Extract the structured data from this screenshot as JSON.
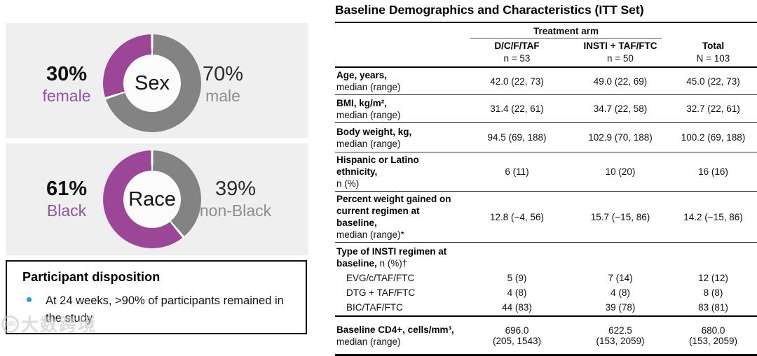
{
  "colors": {
    "slice_purple": "#9c4698",
    "slice_gray": "#838383",
    "purple_text": "#9454a4",
    "gray_text": "#8e8e8e",
    "card_bg": "#f0eff0",
    "bullet_blue": "#2e9ad6"
  },
  "charts": {
    "sex": {
      "center": "Sex",
      "left_pct": "30%",
      "left_label": "female",
      "right_pct": "70%",
      "right_label": "male"
    },
    "race": {
      "center": "Race",
      "left_pct": "61%",
      "left_label": "Black",
      "right_pct": "39%",
      "right_label": "non-Black"
    }
  },
  "disposition": {
    "title": "Participant disposition",
    "bullet_text": "At 24 weeks, >90% of participants remained in the study"
  },
  "watermark": {
    "logo": "100",
    "text": "大数跨境"
  },
  "table": {
    "title": "Baseline Demographics and Characteristics (ITT Set)",
    "header": {
      "arm_label": "Treatment arm",
      "columns": [
        {
          "name": "D/C/F/TAF",
          "n": "n = 53"
        },
        {
          "name": "INSTI + TAF/FTC",
          "n": "n = 50"
        },
        {
          "name": "Total",
          "n": "N = 103"
        }
      ]
    },
    "rows": [
      {
        "label_bold": "Age, years,",
        "label_rest": "median (range)",
        "values": [
          "42.0 (22, 73)",
          "49.0 (22, 69)",
          "45.0 (22, 73)"
        ]
      },
      {
        "label_bold": "BMI, kg/m²,",
        "label_rest": "median (range)",
        "values": [
          "31.4 (22, 61)",
          "34.7 (22, 58)",
          "32.7 (22, 61)"
        ]
      },
      {
        "label_bold": "Body weight, kg,",
        "label_rest": "median (range)",
        "values": [
          "94.5 (69, 188)",
          "102.9 (70, 188)",
          "100.2 (69, 188)"
        ]
      },
      {
        "label_bold": "Hispanic or Latino ethnicity,",
        "label_rest": "n (%)",
        "values": [
          "6 (11)",
          "10 (20)",
          "16 (16)"
        ]
      },
      {
        "label_bold": "Percent weight gained on current regimen at baseline,",
        "label_rest": "median (range)*",
        "values": [
          "12.8 (−4, 56)",
          "15.7 (−15, 86)",
          "14.2 (−15, 86)"
        ]
      },
      {
        "label_bold": "Type of INSTI regimen at baseline,",
        "label_rest": " n (%)†",
        "sub_rows": [
          {
            "label": "EVG/c/TAF/FTC",
            "values": [
              "5 (9)",
              "7 (14)",
              "12 (12)"
            ]
          },
          {
            "label": "DTG + TAF/FTC",
            "values": [
              "4 (8)",
              "4 (8)",
              "8 (8)"
            ]
          },
          {
            "label": "BIC/TAF/FTC",
            "values": [
              "44 (83)",
              "39 (78)",
              "83 (81)"
            ]
          }
        ]
      },
      {
        "label_bold": "Baseline CD4+, cells/mm³,",
        "label_rest": "median (range)",
        "values": [
          "696.0\n(205, 1543)",
          "622.5\n(153, 2059)",
          "680.0\n(153, 2059)"
        ]
      }
    ]
  },
  "chart_data": [
    {
      "type": "pie",
      "title": "Sex",
      "donut": true,
      "labels": [
        "male",
        "female"
      ],
      "values": [
        70,
        30
      ],
      "colors": [
        "#838383",
        "#9c4698"
      ],
      "annotations": [
        "30% female",
        "70% male"
      ],
      "layout": "slices start at 12 o'clock, male clockwise first; labels left (female) and right (male)"
    },
    {
      "type": "pie",
      "title": "Race",
      "donut": true,
      "labels": [
        "non-Black",
        "Black"
      ],
      "values": [
        39,
        61
      ],
      "colors": [
        "#838383",
        "#9c4698"
      ],
      "annotations": [
        "61% Black",
        "39% non-Black"
      ],
      "layout": "slices start at 12 o'clock, non-Black clockwise first; labels left (Black) and right (non-Black)"
    },
    {
      "type": "table",
      "title": "Baseline Demographics and Characteristics (ITT Set)",
      "columns": [
        "Characteristic",
        "D/C/F/TAF (n = 53)",
        "INSTI + TAF/FTC (n = 50)",
        "Total (N = 103)"
      ],
      "rows": [
        [
          "Age, years, median (range)",
          "42.0 (22, 73)",
          "49.0 (22, 69)",
          "45.0 (22, 73)"
        ],
        [
          "BMI, kg/m², median (range)",
          "31.4 (22, 61)",
          "34.7 (22, 58)",
          "32.7 (22, 61)"
        ],
        [
          "Body weight, kg, median (range)",
          "94.5 (69, 188)",
          "102.9 (70, 188)",
          "100.2 (69, 188)"
        ],
        [
          "Hispanic or Latino ethnicity, n (%)",
          "6 (11)",
          "10 (20)",
          "16 (16)"
        ],
        [
          "Percent weight gained on current regimen at baseline, median (range)*",
          "12.8 (−4, 56)",
          "15.7 (−15, 86)",
          "14.2 (−15, 86)"
        ],
        [
          "Type of INSTI regimen at baseline, n (%)† — EVG/c/TAF/FTC",
          "5 (9)",
          "7 (14)",
          "12 (12)"
        ],
        [
          "Type of INSTI regimen at baseline, n (%)† — DTG + TAF/FTC",
          "4 (8)",
          "4 (8)",
          "8 (8)"
        ],
        [
          "Type of INSTI regimen at baseline, n (%)† — BIC/TAF/FTC",
          "44 (83)",
          "39 (78)",
          "83 (81)"
        ],
        [
          "Baseline CD4+, cells/mm³, median (range)",
          "696.0 (205, 1543)",
          "622.5 (153, 2059)",
          "680.0 (153, 2059)"
        ]
      ]
    }
  ]
}
